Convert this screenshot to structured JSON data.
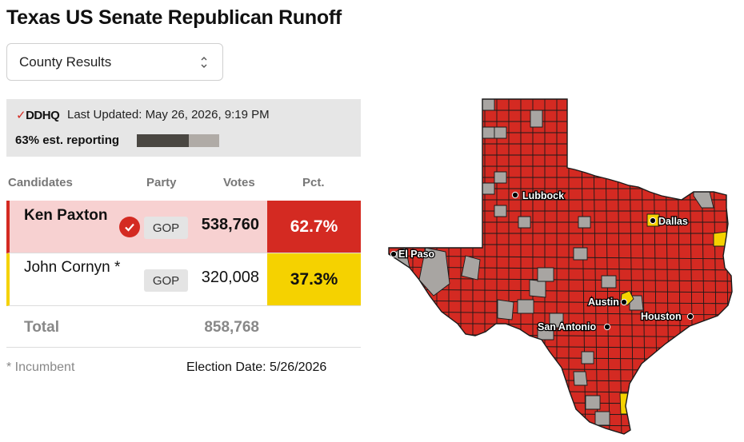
{
  "title": "Texas US Senate Republican Runoff",
  "selector": {
    "value": "County Results"
  },
  "status": {
    "logo": "DDHQ",
    "last_updated": "Last Updated: May 26, 2026, 9:19 PM",
    "reporting_label": "63% est. reporting",
    "reporting_fraction": 0.63
  },
  "table": {
    "headers": {
      "candidates": "Candidates",
      "party": "Party",
      "votes": "Votes",
      "pct": "Pct."
    },
    "rows": [
      {
        "name": "Ken Paxton",
        "party": "GOP",
        "votes": "538,760",
        "pct": "62.7%",
        "winner": true,
        "color": "#d42a22"
      },
      {
        "name": "John Cornyn *",
        "party": "GOP",
        "votes": "320,008",
        "pct": "37.3%",
        "winner": false,
        "color": "#f5d200"
      }
    ],
    "total_label": "Total",
    "total_votes": "858,768"
  },
  "footer": {
    "incumbent_note": "* Incumbent",
    "election_date": "Election Date: 5/26/2026"
  },
  "map": {
    "colors": {
      "paxton": "#d42a22",
      "cornyn": "#f5d200",
      "no_results": "#a8a5a2",
      "border": "#1a1a1a"
    },
    "cities": [
      {
        "name": "Lubbock"
      },
      {
        "name": "Dallas"
      },
      {
        "name": "El Paso"
      },
      {
        "name": "Austin"
      },
      {
        "name": "Houston"
      },
      {
        "name": "San Antonio"
      }
    ]
  }
}
